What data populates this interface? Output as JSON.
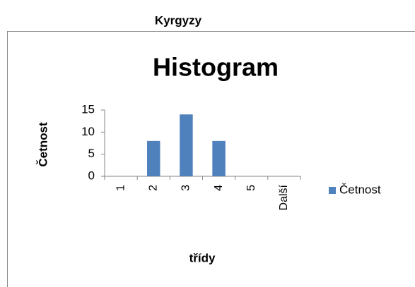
{
  "header": {
    "title": "Kyrgyzy"
  },
  "chart_data": {
    "type": "bar",
    "title": "Histogram",
    "x_label": "třídy",
    "y_label": "Četnost",
    "categories": [
      "1",
      "2",
      "3",
      "4",
      "5",
      "Další"
    ],
    "series": [
      {
        "name": "Četnost",
        "color": "#4f81bd",
        "values": [
          0,
          8,
          14,
          8,
          0,
          0
        ]
      }
    ],
    "ylim": [
      0,
      15
    ],
    "yticks": [
      0,
      5,
      10,
      15
    ],
    "grid": false,
    "legend": "right"
  }
}
